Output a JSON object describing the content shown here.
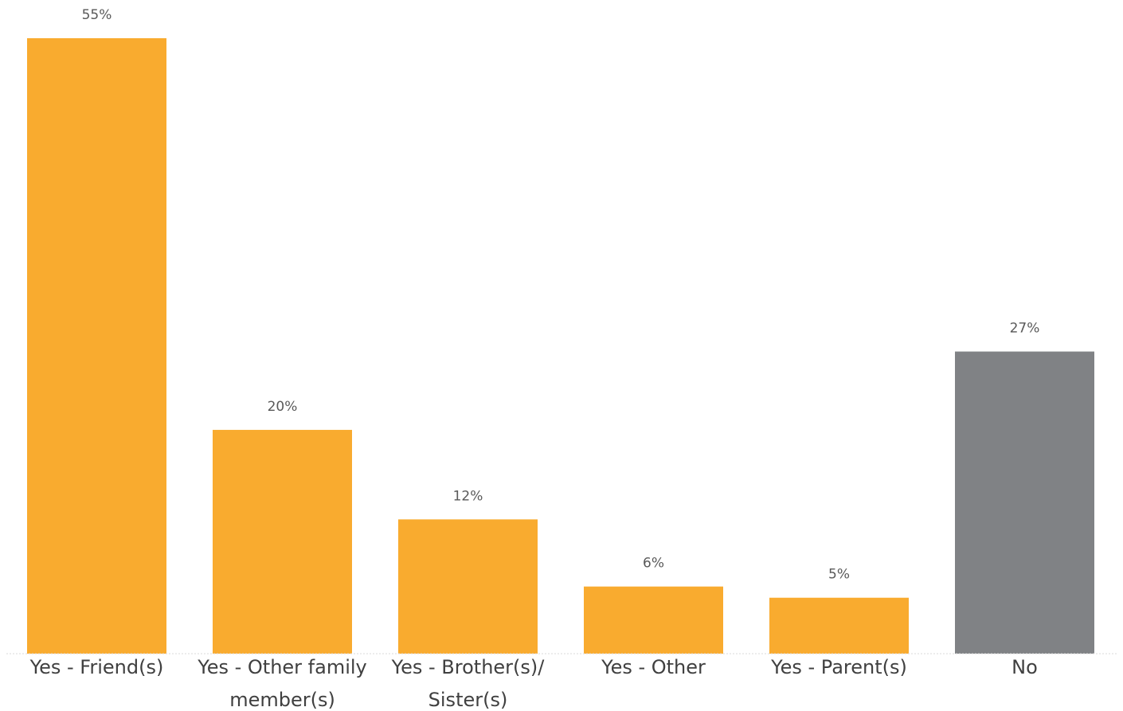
{
  "chart_data": {
    "type": "bar",
    "title": "",
    "xlabel": "",
    "ylabel": "",
    "categories": [
      [
        "Yes - Friend(s)"
      ],
      [
        "Yes - Other family",
        "member(s)"
      ],
      [
        "Yes - Brother(s)/",
        "Sister(s)"
      ],
      [
        "Yes - Other"
      ],
      [
        "Yes - Parent(s)"
      ],
      [
        "No"
      ]
    ],
    "values": [
      55,
      20,
      12,
      6,
      5,
      27
    ],
    "data_labels": [
      "55%",
      "20%",
      "12%",
      "6%",
      "5%",
      "27%"
    ],
    "unit": "%",
    "ylim": [
      0,
      55
    ],
    "grid": false,
    "legend": "none",
    "colors": [
      "#F9AB2F",
      "#F9AB2F",
      "#F9AB2F",
      "#F9AB2F",
      "#F9AB2F",
      "#808285"
    ]
  }
}
